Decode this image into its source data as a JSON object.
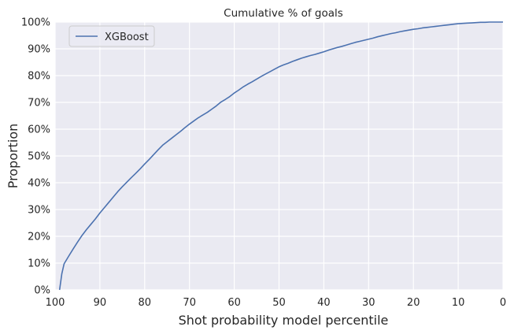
{
  "chart_data": {
    "type": "line",
    "title": "Cumulative % of goals",
    "xlabel": "Shot probability model percentile",
    "ylabel": "Proportion",
    "xlim": [
      100,
      0
    ],
    "ylim": [
      0,
      1
    ],
    "x_reversed": true,
    "grid": true,
    "legend_position": "top-left",
    "xticks": [
      {
        "value": 100,
        "label": "100"
      },
      {
        "value": 90,
        "label": "90"
      },
      {
        "value": 80,
        "label": "80"
      },
      {
        "value": 70,
        "label": "70"
      },
      {
        "value": 60,
        "label": "60"
      },
      {
        "value": 50,
        "label": "50"
      },
      {
        "value": 40,
        "label": "40"
      },
      {
        "value": 30,
        "label": "30"
      },
      {
        "value": 20,
        "label": "20"
      },
      {
        "value": 10,
        "label": "10"
      },
      {
        "value": 0,
        "label": "0"
      }
    ],
    "yticks": [
      {
        "value": 0,
        "label": "0%"
      },
      {
        "value": 0.1,
        "label": "10%"
      },
      {
        "value": 0.2,
        "label": "20%"
      },
      {
        "value": 0.3,
        "label": "30%"
      },
      {
        "value": 0.4,
        "label": "40%"
      },
      {
        "value": 0.5,
        "label": "50%"
      },
      {
        "value": 0.6,
        "label": "60%"
      },
      {
        "value": 0.7,
        "label": "70%"
      },
      {
        "value": 0.8,
        "label": "80%"
      },
      {
        "value": 0.9,
        "label": "90%"
      },
      {
        "value": 1.0,
        "label": "100%"
      }
    ],
    "series": [
      {
        "name": "XGBoost",
        "color": "#4c72b0",
        "x": [
          99,
          98.5,
          98,
          97,
          96,
          95,
          94,
          93,
          92,
          91,
          90,
          89,
          88,
          87,
          86,
          85,
          84,
          83,
          82,
          81,
          80,
          79,
          78,
          77,
          76,
          75,
          74,
          73,
          72,
          71,
          70,
          69,
          68,
          67,
          66,
          65,
          64,
          63,
          62,
          61,
          60,
          59,
          58,
          57,
          56,
          55,
          54,
          53,
          52,
          51,
          50,
          49,
          48,
          47,
          46,
          45,
          44,
          43,
          42,
          41,
          40,
          39,
          38,
          37,
          36,
          35,
          34,
          33,
          32,
          31,
          30,
          29,
          28,
          27,
          26,
          25,
          24,
          23,
          22,
          21,
          20,
          19,
          18,
          17,
          16,
          15,
          14,
          13,
          12,
          11,
          10,
          9,
          8,
          7,
          6,
          5,
          4,
          3,
          2,
          1,
          0
        ],
        "y": [
          0.0,
          0.06,
          0.097,
          0.125,
          0.152,
          0.178,
          0.203,
          0.225,
          0.245,
          0.265,
          0.287,
          0.307,
          0.327,
          0.347,
          0.367,
          0.385,
          0.402,
          0.419,
          0.435,
          0.452,
          0.47,
          0.487,
          0.505,
          0.523,
          0.54,
          0.553,
          0.566,
          0.579,
          0.592,
          0.606,
          0.619,
          0.631,
          0.643,
          0.653,
          0.663,
          0.675,
          0.687,
          0.701,
          0.711,
          0.722,
          0.735,
          0.746,
          0.758,
          0.768,
          0.777,
          0.787,
          0.797,
          0.806,
          0.815,
          0.824,
          0.833,
          0.84,
          0.846,
          0.853,
          0.859,
          0.865,
          0.87,
          0.875,
          0.879,
          0.884,
          0.889,
          0.895,
          0.9,
          0.905,
          0.909,
          0.914,
          0.919,
          0.924,
          0.928,
          0.932,
          0.936,
          0.94,
          0.945,
          0.949,
          0.953,
          0.957,
          0.96,
          0.964,
          0.967,
          0.97,
          0.973,
          0.975,
          0.978,
          0.98,
          0.982,
          0.984,
          0.986,
          0.988,
          0.99,
          0.992,
          0.994,
          0.995,
          0.996,
          0.997,
          0.998,
          0.999,
          0.999,
          1.0,
          1.0,
          1.0,
          1.0
        ]
      }
    ]
  }
}
